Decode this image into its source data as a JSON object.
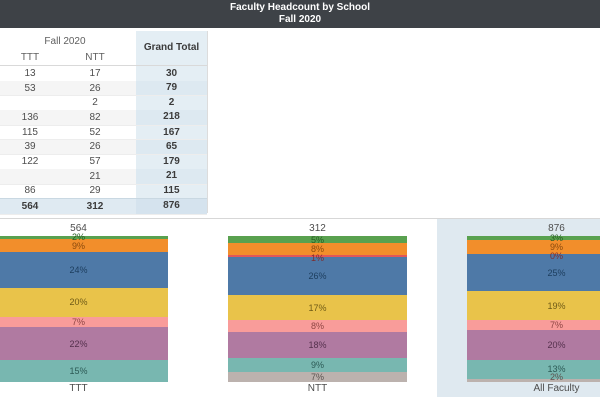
{
  "title": {
    "line1": "Faculty Headcount by School",
    "line2": "Fall 2020"
  },
  "table": {
    "group_header": "Fall 2020",
    "col_ttt": "TTT",
    "col_ntt": "NTT",
    "grand_total_header": "Grand Total",
    "rows": [
      {
        "ttt": "13",
        "ntt": "17",
        "total": "30"
      },
      {
        "ttt": "53",
        "ntt": "26",
        "total": "79"
      },
      {
        "ttt": "",
        "ntt": "2",
        "total": "2"
      },
      {
        "ttt": "136",
        "ntt": "82",
        "total": "218"
      },
      {
        "ttt": "115",
        "ntt": "52",
        "total": "167"
      },
      {
        "ttt": "39",
        "ntt": "26",
        "total": "65"
      },
      {
        "ttt": "122",
        "ntt": "57",
        "total": "179"
      },
      {
        "ttt": "",
        "ntt": "21",
        "total": "21"
      },
      {
        "ttt": "86",
        "ntt": "29",
        "total": "115"
      }
    ],
    "total_row": {
      "ttt": "564",
      "ntt": "312",
      "total": "876"
    }
  },
  "chart": {
    "highlight_color": "#dfe9f0",
    "palette": {
      "green": {
        "fill": "#59a14f",
        "label": "#265c22"
      },
      "orange": {
        "fill": "#f28e2b",
        "label": "#8a4a0e"
      },
      "red": {
        "fill": "#e15759",
        "label": "#7c2c2e"
      },
      "blue": {
        "fill": "#4e79a7",
        "label": "#1c3d5d"
      },
      "yellow": {
        "fill": "#e9c34a",
        "label": "#6e5a17"
      },
      "pink": {
        "fill": "#f99c9a",
        "label": "#8e4543"
      },
      "purple": {
        "fill": "#b07aa1",
        "label": "#54304c"
      },
      "teal": {
        "fill": "#78b7b0",
        "label": "#2c5a55"
      },
      "gray": {
        "fill": "#bcb2ae",
        "label": "#5c534f"
      }
    },
    "bars": [
      {
        "label": "TTT",
        "total": "564",
        "highlighted": false,
        "segments": [
          {
            "color": "green",
            "pct": 2,
            "text": "2%"
          },
          {
            "color": "orange",
            "pct": 9,
            "text": "9%"
          },
          {
            "color": "blue",
            "pct": 24,
            "text": "24%"
          },
          {
            "color": "yellow",
            "pct": 20,
            "text": "20%"
          },
          {
            "color": "pink",
            "pct": 7,
            "text": "7%"
          },
          {
            "color": "purple",
            "pct": 22,
            "text": "22%"
          },
          {
            "color": "teal",
            "pct": 15,
            "text": "15%"
          }
        ]
      },
      {
        "label": "NTT",
        "total": "312",
        "highlighted": false,
        "segments": [
          {
            "color": "green",
            "pct": 5,
            "text": "5%"
          },
          {
            "color": "orange",
            "pct": 8,
            "text": "8%"
          },
          {
            "color": "red",
            "pct": 1,
            "text": "1%"
          },
          {
            "color": "blue",
            "pct": 26,
            "text": "26%"
          },
          {
            "color": "yellow",
            "pct": 17,
            "text": "17%"
          },
          {
            "color": "pink",
            "pct": 8,
            "text": "8%"
          },
          {
            "color": "purple",
            "pct": 18,
            "text": "18%"
          },
          {
            "color": "teal",
            "pct": 9,
            "text": "9%"
          },
          {
            "color": "gray",
            "pct": 7,
            "text": "7%"
          }
        ]
      },
      {
        "label": "All Faculty",
        "total": "876",
        "highlighted": true,
        "segments": [
          {
            "color": "green",
            "pct": 3,
            "text": "3%"
          },
          {
            "color": "orange",
            "pct": 9,
            "text": "9%"
          },
          {
            "color": "red",
            "pct": 0.3,
            "text": "0%"
          },
          {
            "color": "blue",
            "pct": 25,
            "text": "25%"
          },
          {
            "color": "yellow",
            "pct": 19,
            "text": "19%"
          },
          {
            "color": "pink",
            "pct": 7,
            "text": "7%"
          },
          {
            "color": "purple",
            "pct": 20,
            "text": "20%"
          },
          {
            "color": "teal",
            "pct": 13,
            "text": "13%"
          },
          {
            "color": "gray",
            "pct": 2,
            "text": "2%"
          }
        ]
      }
    ]
  },
  "chart_data": [
    {
      "type": "table",
      "title": "Fall 2020",
      "columns": [
        "TTT",
        "NTT",
        "Grand Total"
      ],
      "rows": [
        [
          13,
          17,
          30
        ],
        [
          53,
          26,
          79
        ],
        [
          null,
          2,
          2
        ],
        [
          136,
          82,
          218
        ],
        [
          115,
          52,
          167
        ],
        [
          39,
          26,
          65
        ],
        [
          122,
          57,
          179
        ],
        [
          null,
          21,
          21
        ],
        [
          86,
          29,
          115
        ]
      ],
      "grand_total": [
        564,
        312,
        876
      ]
    },
    {
      "type": "bar",
      "subtype": "stacked-100-percent",
      "title": "Faculty Headcount by School, Fall 2020",
      "categories": [
        "TTT",
        "NTT",
        "All Faculty"
      ],
      "bar_totals": [
        564,
        312,
        876
      ],
      "ylim": [
        0,
        100
      ],
      "grid": false,
      "legend": "none",
      "series": [
        {
          "name": "segment-green",
          "color": "#59a14f",
          "values_pct": [
            2,
            5,
            3
          ]
        },
        {
          "name": "segment-orange",
          "color": "#f28e2b",
          "values_pct": [
            9,
            8,
            9
          ]
        },
        {
          "name": "segment-red",
          "color": "#e15759",
          "values_pct": [
            0,
            1,
            0
          ]
        },
        {
          "name": "segment-blue",
          "color": "#4e79a7",
          "values_pct": [
            24,
            26,
            25
          ]
        },
        {
          "name": "segment-yellow",
          "color": "#e9c34a",
          "values_pct": [
            20,
            17,
            19
          ]
        },
        {
          "name": "segment-pink",
          "color": "#f99c9a",
          "values_pct": [
            7,
            8,
            7
          ]
        },
        {
          "name": "segment-purple",
          "color": "#b07aa1",
          "values_pct": [
            22,
            18,
            20
          ]
        },
        {
          "name": "segment-teal",
          "color": "#78b7b0",
          "values_pct": [
            15,
            9,
            13
          ]
        },
        {
          "name": "segment-gray",
          "color": "#bcb2ae",
          "values_pct": [
            0,
            7,
            2
          ]
        }
      ],
      "highlighted_category": "All Faculty"
    }
  ]
}
